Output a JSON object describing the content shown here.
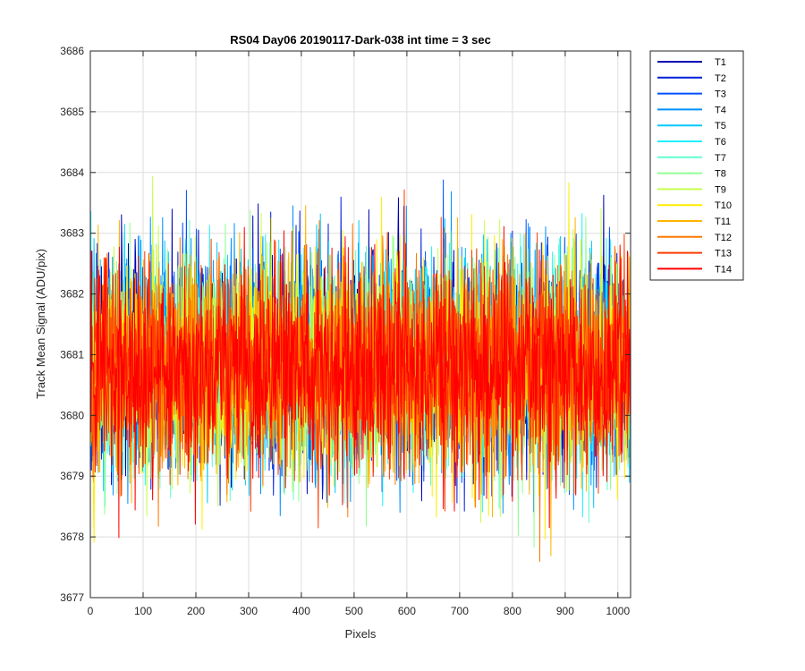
{
  "chart_data": {
    "type": "line",
    "title": "RS04 Day06 20190117-Dark-038 int time = 3 sec",
    "xlabel": "Pixels",
    "ylabel": "Track Mean Signal (ADU/pix)",
    "xlim": [
      0,
      1024
    ],
    "ylim": [
      3677,
      3686
    ],
    "xticks": [
      0,
      100,
      200,
      300,
      400,
      500,
      600,
      700,
      800,
      900,
      1000
    ],
    "yticks": [
      3677,
      3678,
      3679,
      3680,
      3681,
      3682,
      3683,
      3684,
      3685,
      3686
    ],
    "grid": true,
    "legend_position": "outside-top-right",
    "n_points": 1024,
    "mean_signal": 3680.8,
    "noise_std": 0.85,
    "series": [
      {
        "name": "T1",
        "color": "#0000b4"
      },
      {
        "name": "T2",
        "color": "#0020d8"
      },
      {
        "name": "T3",
        "color": "#0050ff"
      },
      {
        "name": "T4",
        "color": "#0090ff"
      },
      {
        "name": "T5",
        "color": "#00c8ff"
      },
      {
        "name": "T6",
        "color": "#20f0ff"
      },
      {
        "name": "T7",
        "color": "#60ffd0"
      },
      {
        "name": "T8",
        "color": "#90ff90"
      },
      {
        "name": "T9",
        "color": "#c8ff50"
      },
      {
        "name": "T10",
        "color": "#ffee00"
      },
      {
        "name": "T11",
        "color": "#ffb400"
      },
      {
        "name": "T12",
        "color": "#ff7800"
      },
      {
        "name": "T13",
        "color": "#ff3c00"
      },
      {
        "name": "T14",
        "color": "#ff0000"
      }
    ]
  }
}
